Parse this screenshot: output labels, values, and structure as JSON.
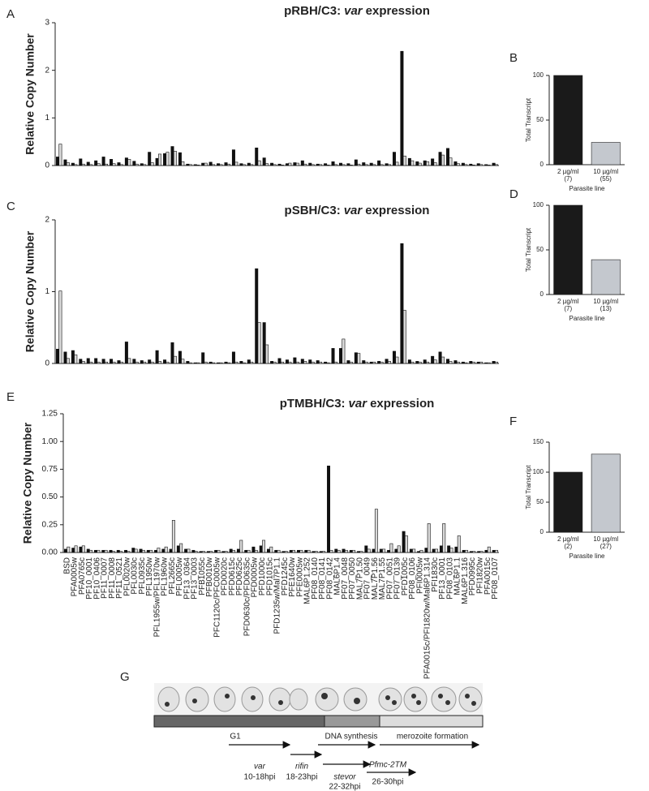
{
  "chart_data": [
    {
      "panel": "A",
      "type": "bar",
      "title": [
        "pRBH/C3:",
        "var",
        "expression"
      ],
      "ylabel": "Relative Copy Number",
      "categories": [
        null,
        null,
        null,
        null,
        null,
        null,
        null,
        null,
        null,
        null,
        null,
        null,
        null,
        null,
        null,
        null,
        null,
        null,
        null,
        null,
        null,
        null,
        null,
        null,
        null,
        null,
        null,
        null,
        null,
        null,
        null,
        null,
        null,
        null,
        null,
        null,
        null,
        null,
        null,
        null,
        null,
        null,
        null,
        null,
        null,
        null,
        null,
        null,
        null,
        null,
        null,
        null,
        null,
        null,
        null,
        null,
        null,
        null
      ],
      "series": [
        {
          "color": "#111111",
          "values": [
            0.18,
            0.12,
            0.05,
            0.14,
            0.07,
            0.1,
            0.18,
            0.13,
            0.06,
            0.16,
            0.09,
            0.04,
            0.28,
            0.15,
            0.25,
            0.4,
            0.27,
            0.03,
            0.02,
            0.05,
            0.07,
            0.04,
            0.06,
            0.33,
            0.04,
            0.05,
            0.37,
            0.16,
            0.05,
            0.03,
            0.04,
            0.06,
            0.1,
            0.05,
            0.03,
            0.04,
            0.08,
            0.05,
            0.04,
            0.12,
            0.06,
            0.05,
            0.1,
            0.04,
            0.28,
            2.4,
            0.15,
            0.08,
            0.1,
            0.14,
            0.28,
            0.36,
            0.08,
            0.05,
            0.03,
            0.04,
            0.02,
            0.05
          ]
        },
        {
          "color": "#d8d8d8",
          "values": [
            0.45,
            0.06,
            0.02,
            0.03,
            0.02,
            0.04,
            0.03,
            0.04,
            0.02,
            0.13,
            0.03,
            0.02,
            0.06,
            0.24,
            0.28,
            0.3,
            0.08,
            0.02,
            0.01,
            0.05,
            0.02,
            0.02,
            0.03,
            0.07,
            0.02,
            0.02,
            0.1,
            0.04,
            0.02,
            0.01,
            0.05,
            0.05,
            0.03,
            0.02,
            0.02,
            0.01,
            0.02,
            0.02,
            0.01,
            0.03,
            0.02,
            0.02,
            0.02,
            0.02,
            0.07,
            0.2,
            0.1,
            0.05,
            0.08,
            0.06,
            0.22,
            0.16,
            0.04,
            0.02,
            0.01,
            0.02,
            0.01,
            0.02
          ]
        }
      ],
      "ylim": [
        0,
        3
      ],
      "yticks": [
        0,
        1,
        2,
        3
      ]
    },
    {
      "panel": "B",
      "type": "bar",
      "ylabel": "Total Transcript",
      "xlabel": "Parasite line",
      "categories": [
        [
          "2 µg/ml",
          "(7)"
        ],
        [
          "10 µg/ml",
          "(55)"
        ]
      ],
      "values": [
        100,
        25
      ],
      "colors": [
        "#1a1a1a",
        "#c4c8ce"
      ],
      "ylim": [
        0,
        100
      ],
      "yticks": [
        0,
        50,
        100
      ]
    },
    {
      "panel": "C",
      "type": "bar",
      "title": [
        "pSBH/C3:",
        "var",
        "expression"
      ],
      "ylabel": "Relative Copy Number",
      "categories": [
        null,
        null,
        null,
        null,
        null,
        null,
        null,
        null,
        null,
        null,
        null,
        null,
        null,
        null,
        null,
        null,
        null,
        null,
        null,
        null,
        null,
        null,
        null,
        null,
        null,
        null,
        null,
        null,
        null,
        null,
        null,
        null,
        null,
        null,
        null,
        null,
        null,
        null,
        null,
        null,
        null,
        null,
        null,
        null,
        null,
        null,
        null,
        null,
        null,
        null,
        null,
        null,
        null,
        null,
        null,
        null,
        null,
        null
      ],
      "series": [
        {
          "color": "#111111",
          "values": [
            0.2,
            0.16,
            0.18,
            0.06,
            0.07,
            0.07,
            0.06,
            0.06,
            0.04,
            0.3,
            0.06,
            0.04,
            0.05,
            0.18,
            0.05,
            0.29,
            0.17,
            0.03,
            0.01,
            0.15,
            0.02,
            0.01,
            0.02,
            0.16,
            0.03,
            0.05,
            1.32,
            0.57,
            0.03,
            0.07,
            0.05,
            0.08,
            0.06,
            0.05,
            0.04,
            0.02,
            0.21,
            0.21,
            0.04,
            0.15,
            0.04,
            0.02,
            0.03,
            0.06,
            0.17,
            1.67,
            0.05,
            0.03,
            0.05,
            0.1,
            0.16,
            0.06,
            0.04,
            0.02,
            0.03,
            0.02,
            0.01,
            0.03
          ]
        },
        {
          "color": "#d8d8d8",
          "values": [
            1.01,
            0.07,
            0.12,
            0.03,
            0.02,
            0.02,
            0.02,
            0.02,
            0.02,
            0.07,
            0.02,
            0.02,
            0.02,
            0.03,
            0.02,
            0.1,
            0.06,
            0.01,
            0.01,
            0.02,
            0.01,
            0.01,
            0.01,
            0.02,
            0.01,
            0.02,
            0.57,
            0.26,
            0.02,
            0.02,
            0.02,
            0.02,
            0.03,
            0.02,
            0.02,
            0.01,
            0.02,
            0.34,
            0.02,
            0.14,
            0.02,
            0.02,
            0.02,
            0.03,
            0.09,
            0.74,
            0.02,
            0.02,
            0.02,
            0.05,
            0.09,
            0.03,
            0.02,
            0.01,
            0.02,
            0.02,
            0.01,
            0.02
          ]
        }
      ],
      "ylim": [
        0,
        2
      ],
      "yticks": [
        0,
        1,
        2
      ]
    },
    {
      "panel": "D",
      "type": "bar",
      "ylabel": "Total Transcript",
      "xlabel": "Parasite line",
      "categories": [
        [
          "2 µg/ml",
          "(7)"
        ],
        [
          "10 µg/ml",
          "(13)"
        ]
      ],
      "values": [
        100,
        39
      ],
      "colors": [
        "#1a1a1a",
        "#c4c8ce"
      ],
      "ylim": [
        0,
        100
      ],
      "yticks": [
        0,
        50,
        100
      ]
    },
    {
      "panel": "E",
      "type": "bar",
      "title": [
        "pTMBH/C3:",
        "var",
        "expression"
      ],
      "ylabel": "Relative Copy Number",
      "categories": [
        "BSD",
        "PFA0005w",
        "PFA0765c",
        "PF10_0001",
        "PF10_0406",
        "PF11_0007",
        "PF11_0008",
        "PF11_0521",
        "PFL0020w",
        "PFL0030c",
        "PFL0935c",
        "PFL1950w",
        "PFL1955w/PFL1970w",
        "PFL1960w",
        "PFL2665c",
        "PFL0005w",
        "PF13_0364",
        "PF13_0003",
        "PFB1055c",
        "PFB0010w",
        "PFC1120c/PFC0005w",
        "PFD0020c",
        "PFD0615c",
        "PFD0625c",
        "PFD0630c/PFD0635c",
        "PFD0005w",
        "PFD1000c",
        "PFD1015c",
        "PFD1235w/Mal7P1.1",
        "PFD1245c",
        "PFE1640w",
        "PFE0005w",
        "MAL6P1.252",
        "PF08_0140",
        "PF08_0141",
        "PF08_0142",
        "MAL6P1.4",
        "PF07_0048",
        "PF07_0050",
        "MAL7P1.50",
        "PF07_0049",
        "MAL7P1.56",
        "MAL7P1.55",
        "PF07_0051",
        "PF07_0139",
        "PFD1005c",
        "PF08_0106",
        "PFI0005w",
        "PFA0015c/PFI1820w/Mal6P1.314",
        "PFI1830c",
        "PF13_0001",
        "PF08_0103",
        "MAL6P1.1",
        "MAL6P1.316",
        "PFD0995c",
        "PFI1820w",
        "PFA0015c",
        "PF08_0107"
      ],
      "series": [
        {
          "color": "#111111",
          "values": [
            0.03,
            0.04,
            0.05,
            0.03,
            0.02,
            0.02,
            0.02,
            0.02,
            0.02,
            0.04,
            0.03,
            0.02,
            0.02,
            0.03,
            0.03,
            0.06,
            0.03,
            0.02,
            0.01,
            0.01,
            0.02,
            0.01,
            0.03,
            0.03,
            0.02,
            0.05,
            0.06,
            0.03,
            0.02,
            0.01,
            0.02,
            0.02,
            0.02,
            0.01,
            0.01,
            0.78,
            0.03,
            0.03,
            0.02,
            0.01,
            0.06,
            0.03,
            0.03,
            0.02,
            0.03,
            0.19,
            0.03,
            0.01,
            0.04,
            0.03,
            0.06,
            0.06,
            0.05,
            0.02,
            0.01,
            0.01,
            0.02,
            0.02
          ]
        },
        {
          "color": "#d8d8d8",
          "values": [
            0.05,
            0.06,
            0.06,
            0.02,
            0.02,
            0.02,
            0.01,
            0.01,
            0.01,
            0.03,
            0.02,
            0.02,
            0.04,
            0.05,
            0.29,
            0.08,
            0.03,
            0.01,
            0.01,
            0.01,
            0.02,
            0.01,
            0.02,
            0.11,
            0.02,
            0.02,
            0.11,
            0.05,
            0.02,
            0.01,
            0.02,
            0.02,
            0.02,
            0.01,
            0.01,
            0.02,
            0.02,
            0.02,
            0.02,
            0.01,
            0.03,
            0.39,
            0.03,
            0.08,
            0.06,
            0.15,
            0.03,
            0.02,
            0.26,
            0.03,
            0.26,
            0.04,
            0.15,
            0.02,
            0.01,
            0.01,
            0.05,
            0.02
          ]
        }
      ],
      "ylim": [
        0,
        1.25
      ],
      "yticks": [
        {
          "value": 0,
          "label": "0.00"
        },
        {
          "value": 0.25,
          "label": "0.25"
        },
        {
          "value": 0.5,
          "label": "0.50"
        },
        {
          "value": 0.75,
          "label": "0.75"
        },
        {
          "value": 1,
          "label": "1.00"
        },
        {
          "value": 1.25,
          "label": "1.25"
        }
      ]
    },
    {
      "panel": "F",
      "type": "bar",
      "ylabel": "Total Transcript",
      "xlabel": "Parasite line",
      "categories": [
        [
          "2 µg/ml",
          "(2)"
        ],
        [
          "10 µg/ml",
          "(27)"
        ]
      ],
      "values": [
        100,
        130
      ],
      "colors": [
        "#1a1a1a",
        "#c4c8ce"
      ],
      "ylim": [
        0,
        150
      ],
      "yticks": [
        0,
        50,
        100,
        150
      ]
    }
  ],
  "diagram": {
    "panel": "G",
    "phases": [
      "G1",
      "DNA synthesis",
      "merozoite formation"
    ],
    "genes": [
      {
        "name": "var",
        "window": "10-18hpi"
      },
      {
        "name": "rifin",
        "window": "18-23hpi"
      },
      {
        "name": "stevor",
        "window": "22-32hpi"
      },
      {
        "name": "Pfmc-2TM",
        "window": "26-30hpi"
      }
    ]
  }
}
